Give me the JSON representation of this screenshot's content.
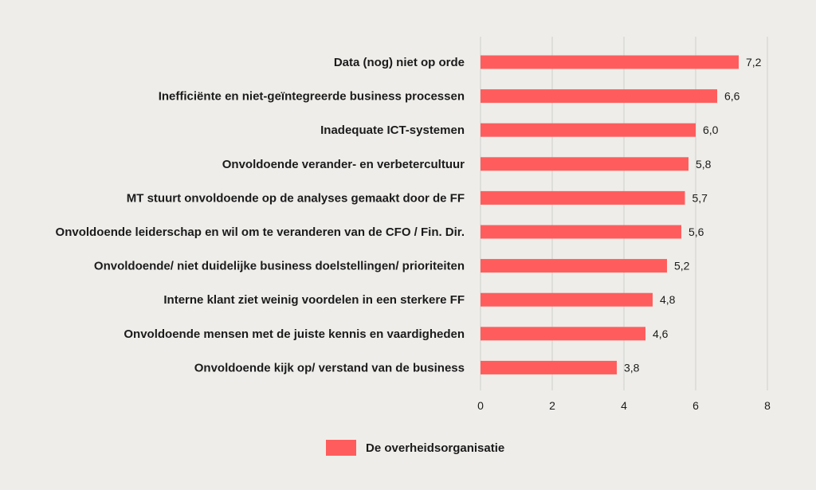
{
  "chart_data": {
    "type": "bar",
    "orientation": "horizontal",
    "categories": [
      "Data (nog) niet op orde",
      "Inefficiënte en niet-geïntegreerde business processen",
      "Inadequate ICT-systemen",
      "Onvoldoende verander- en verbetercultuur",
      "MT stuurt onvoldoende op de analyses gemaakt door de FF",
      "Onvoldoende leiderschap en wil om te veranderen van de CFO / Fin. Dir.",
      "Onvoldoende/ niet duidelijke business doelstellingen/ prioriteiten",
      "Interne klant ziet weinig voordelen in een sterkere FF",
      "Onvoldoende mensen met de juiste kennis en vaardigheden",
      "Onvoldoende kijk op/ verstand van de business"
    ],
    "series": [
      {
        "name": "De overheidsorganisatie",
        "values": [
          7.2,
          6.6,
          6.0,
          5.8,
          5.7,
          5.6,
          5.2,
          4.8,
          4.6,
          3.8
        ],
        "value_labels": [
          "7,2",
          "6,6",
          "6,0",
          "5,8",
          "5,7",
          "5,6",
          "5,2",
          "4,8",
          "4,6",
          "3,8"
        ],
        "color": "#ff5d5d"
      }
    ],
    "xlim": [
      0,
      8
    ],
    "xticks": [
      0,
      2,
      4,
      6,
      8
    ],
    "xtick_labels": [
      "0",
      "2",
      "4",
      "6",
      "8"
    ],
    "grid": "vertical",
    "legend_position": "bottom-center",
    "background": "#eeede9",
    "gridline_color": "#cfcfcb"
  },
  "legend": {
    "label": "De overheidsorganisatie",
    "color": "#ff5d5d"
  }
}
